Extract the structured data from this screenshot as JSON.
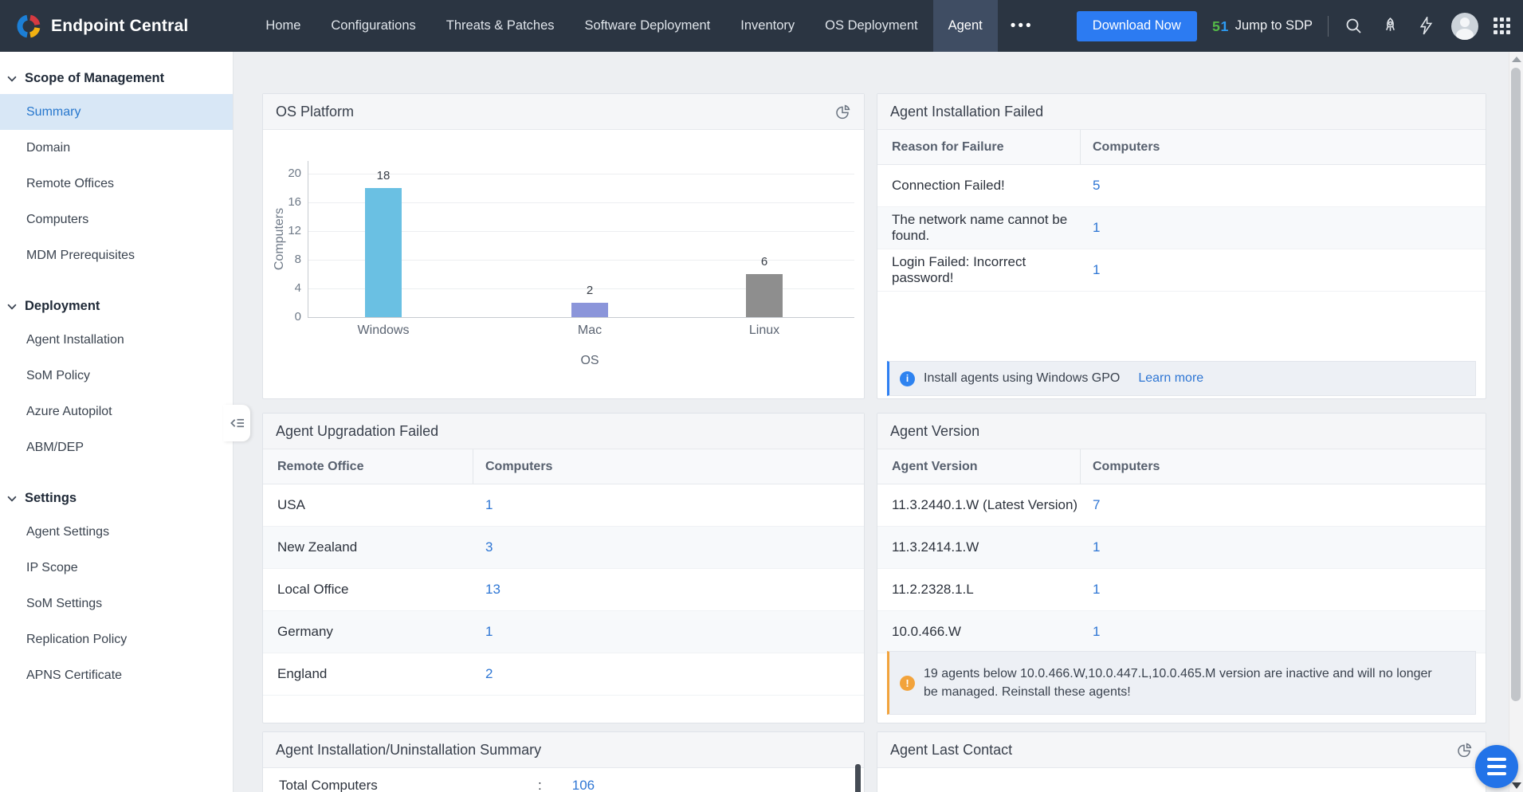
{
  "navbar": {
    "brand": "Endpoint Central",
    "items": [
      "Home",
      "Configurations",
      "Threats & Patches",
      "Software Deployment",
      "Inventory",
      "OS Deployment",
      "Agent"
    ],
    "active_item": "Agent",
    "more_label": "•••",
    "download_button": "Download Now",
    "jump_to_sdp": "Jump to SDP"
  },
  "sidebar": {
    "sections": [
      {
        "title": "Scope of Management",
        "items": [
          "Summary",
          "Domain",
          "Remote Offices",
          "Computers",
          "MDM Prerequisites"
        ],
        "selected": "Summary"
      },
      {
        "title": "Deployment",
        "items": [
          "Agent Installation",
          "SoM Policy",
          "Azure Autopilot",
          "ABM/DEP"
        ]
      },
      {
        "title": "Settings",
        "items": [
          "Agent Settings",
          "IP Scope",
          "SoM Settings",
          "Replication Policy",
          "APNS Certificate"
        ]
      }
    ]
  },
  "chart_data": {
    "type": "bar",
    "title": "OS Platform",
    "categories": [
      "Windows",
      "Mac",
      "Linux"
    ],
    "values": [
      18,
      2,
      6
    ],
    "colors": [
      "#6ac0e3",
      "#8b95da",
      "#8e8e8e"
    ],
    "xlabel": "OS",
    "ylabel": "Computers",
    "ylim": [
      0,
      20
    ],
    "yticks": [
      0,
      4,
      8,
      12,
      16,
      20
    ],
    "grid": true,
    "legend": "none"
  },
  "cards": {
    "os_platform": {
      "title": "OS Platform"
    },
    "agent_installation_failed": {
      "title": "Agent Installation Failed",
      "columns": [
        "Reason for Failure",
        "Computers"
      ],
      "rows": [
        [
          "Connection Failed!",
          "5"
        ],
        [
          "The network name cannot be found.",
          "1"
        ],
        [
          "Login Failed: Incorrect password!",
          "1"
        ]
      ],
      "note_text": "Install agents using Windows GPO",
      "note_link": "Learn more"
    },
    "agent_upgradation_failed": {
      "title": "Agent Upgradation Failed",
      "columns": [
        "Remote Office",
        "Computers"
      ],
      "rows": [
        [
          "USA",
          "1"
        ],
        [
          "New Zealand",
          "3"
        ],
        [
          "Local Office",
          "13"
        ],
        [
          "Germany",
          "1"
        ],
        [
          "England",
          "2"
        ]
      ]
    },
    "agent_version": {
      "title": "Agent Version",
      "columns": [
        "Agent Version",
        "Computers"
      ],
      "rows": [
        [
          "11.3.2440.1.W (Latest Version)",
          "7"
        ],
        [
          "11.3.2414.1.W",
          "1"
        ],
        [
          "11.2.2328.1.L",
          "1"
        ],
        [
          "10.0.466.W",
          "1"
        ]
      ],
      "note_text": "19 agents below 10.0.466.W,10.0.447.L,10.0.465.M version are inactive and will no longer be managed. Reinstall these agents!"
    },
    "agent_install_summary": {
      "title": "Agent Installation/Uninstallation Summary",
      "row_label": "Total Computers",
      "row_sep": ":",
      "row_value": "106"
    },
    "agent_last_contact": {
      "title": "Agent Last Contact"
    }
  }
}
